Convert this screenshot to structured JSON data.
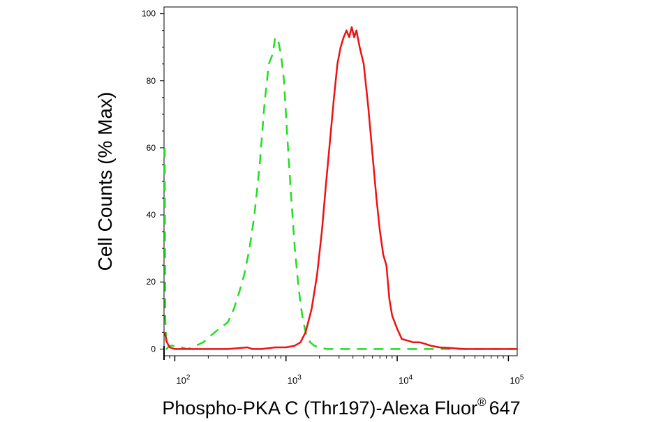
{
  "chart_data": {
    "type": "line",
    "xlabel": "Phospho-PKA C (Thr197)-Alexa Fluor",
    "xlabel_superscript": "®",
    "xlabel_suffix": "647",
    "ylabel": "Cell Counts (% Max)",
    "x_scale": "log",
    "xlim": [
      80,
      120000
    ],
    "ylim": [
      -2,
      102
    ],
    "y_ticks": [
      0,
      20,
      40,
      60,
      80,
      100
    ],
    "y_tick_labels": [
      "0",
      "20",
      "40",
      "60",
      "80",
      "100"
    ],
    "x_ticks": [
      100,
      1000,
      10000,
      100000
    ],
    "x_tick_labels": [
      {
        "base": "10",
        "exp": "2"
      },
      {
        "base": "10",
        "exp": "3"
      },
      {
        "base": "10",
        "exp": "4"
      },
      {
        "base": "10",
        "exp": "5"
      }
    ],
    "grid": false,
    "legend": "none",
    "series": [
      {
        "color": "#22dd22",
        "dash": "dashed",
        "x": [
          81,
          82,
          84,
          90,
          100,
          115,
          130,
          155,
          180,
          210,
          250,
          300,
          340,
          380,
          420,
          470,
          520,
          580,
          640,
          700,
          760,
          800,
          850,
          900,
          960,
          1020,
          1100,
          1200,
          1300,
          1400,
          1500,
          1650,
          1800,
          2000,
          2300,
          3000,
          5000,
          10000,
          20000,
          50000,
          120000
        ],
        "y": [
          60,
          10,
          0,
          1,
          1,
          0.5,
          0,
          1,
          2,
          4,
          6,
          8,
          12,
          17,
          22,
          30,
          40,
          55,
          73,
          85,
          88,
          93,
          92,
          88,
          80,
          65,
          48,
          30,
          18,
          10,
          5,
          2,
          1,
          0.5,
          0,
          0,
          0,
          0,
          0,
          0,
          0
        ]
      },
      {
        "color": "#ee1111",
        "dash": "solid",
        "x": [
          81,
          85,
          90,
          100,
          150,
          300,
          450,
          500,
          600,
          800,
          1000,
          1200,
          1350,
          1500,
          1700,
          1900,
          2100,
          2300,
          2500,
          2700,
          2900,
          3100,
          3300,
          3500,
          3700,
          3900,
          4100,
          4300,
          4600,
          5000,
          5500,
          6000,
          6500,
          7000,
          7500,
          8000,
          8500,
          9000,
          10000,
          11000,
          12500,
          14000,
          16000,
          18000,
          20000,
          24000,
          30000,
          40000,
          60000,
          120000
        ],
        "y": [
          5,
          2,
          0.5,
          0,
          0,
          0,
          0.5,
          0,
          0,
          0.5,
          0.5,
          1,
          2,
          5,
          12,
          22,
          35,
          50,
          63,
          75,
          85,
          90,
          93,
          95,
          93,
          96,
          93,
          95,
          90,
          85,
          72,
          58,
          45,
          35,
          28,
          25,
          15,
          10,
          6,
          3,
          2.5,
          2,
          2,
          1.5,
          1,
          0.5,
          0.3,
          0,
          0,
          0
        ]
      }
    ]
  }
}
